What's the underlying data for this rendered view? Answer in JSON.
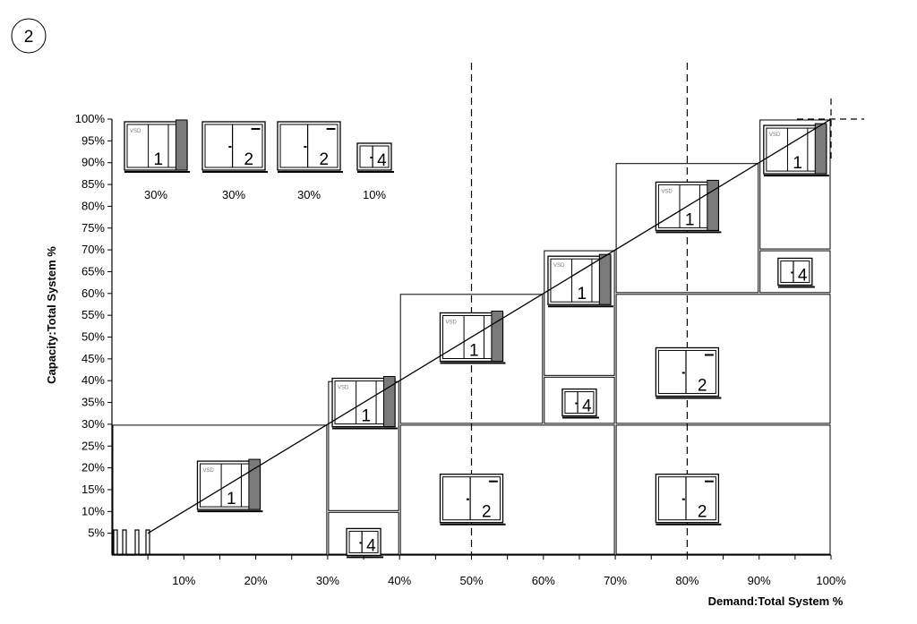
{
  "diagram_number": "2",
  "y_axis_title": "Capacity:Total System %",
  "x_axis_title": "Demand:Total System %",
  "y_ticks": [
    "5%",
    "10%",
    "15%",
    "20%",
    "25%",
    "30%",
    "35%",
    "40%",
    "45%",
    "50%",
    "55%",
    "60%",
    "65%",
    "70%",
    "75%",
    "80%",
    "85%",
    "90%",
    "95%",
    "100%"
  ],
  "x_ticks": [
    "10%",
    "20%",
    "30%",
    "40%",
    "50%",
    "60%",
    "70%",
    "80%",
    "90%",
    "100%"
  ],
  "legend": [
    {
      "unit": "1",
      "share": "30%",
      "vsd": true
    },
    {
      "unit": "2",
      "share": "30%",
      "vsd": false
    },
    {
      "unit": "2",
      "share": "30%",
      "vsd": false
    },
    {
      "unit": "4",
      "share": "10%",
      "vsd": false
    }
  ],
  "vsd_label": "VSD",
  "stages": [
    {
      "demand": [
        0,
        30
      ],
      "capacity": [
        0,
        30
      ],
      "units": [
        "1"
      ]
    },
    {
      "demand": [
        30,
        40
      ],
      "capacity": [
        0,
        40
      ],
      "units": [
        "4",
        "1"
      ]
    },
    {
      "demand": [
        40,
        70
      ],
      "capacity": [
        0,
        60
      ],
      "units": [
        "2",
        "1"
      ]
    },
    {
      "demand": [
        60,
        70
      ],
      "capacity": [
        30,
        70
      ],
      "units": [
        "4",
        "1"
      ]
    },
    {
      "demand": [
        70,
        100
      ],
      "capacity": [
        0,
        90
      ],
      "units": [
        "2",
        "2",
        "1"
      ]
    },
    {
      "demand": [
        90,
        100
      ],
      "capacity": [
        60,
        100
      ],
      "units": [
        "4",
        "1"
      ]
    }
  ],
  "dashed_demand_lines": [
    50,
    80
  ],
  "diagonal": {
    "from": [
      5,
      5
    ],
    "to": [
      100,
      100
    ]
  }
}
